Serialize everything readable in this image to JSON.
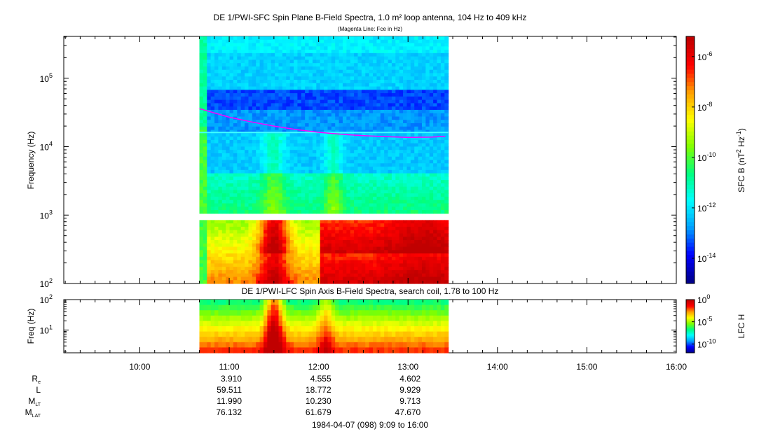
{
  "chart_data": [
    {
      "type": "heatmap",
      "title": "DE 1/PWI-SFC  Spin Plane B-Field Spectra, 1.0 m² loop antenna, 104 Hz to 409 kHz",
      "subtitle": "(Magenta Line: Fce in Hz)",
      "ylabel": "Frequency (Hz)",
      "yscale": "log",
      "ylim": [
        100,
        409000
      ],
      "yticks": [
        {
          "base": "10",
          "exp": "2"
        },
        {
          "base": "10",
          "exp": "3"
        },
        {
          "base": "10",
          "exp": "4"
        },
        {
          "base": "10",
          "exp": "5"
        }
      ],
      "xlim": [
        "09:09",
        "16:00"
      ],
      "data_time_range": [
        "10:40",
        "13:27"
      ],
      "colorbar": {
        "label_prefix": "SFC B (nT",
        "label_sup1": "2",
        "label_mid": " Hz",
        "label_sup2": "-1",
        "label_suffix": ")",
        "scale": "log",
        "ticks": [
          {
            "base": "10",
            "exp": "-6"
          },
          {
            "base": "10",
            "exp": "-8"
          },
          {
            "base": "10",
            "exp": "-10"
          },
          {
            "base": "10",
            "exp": "-12"
          },
          {
            "base": "10",
            "exp": "-14"
          }
        ],
        "colors": [
          "#00008b",
          "#0000ff",
          "#00a0ff",
          "#00ffff",
          "#00ff80",
          "#80ff00",
          "#ffff00",
          "#ffa000",
          "#ff0000",
          "#c00000"
        ]
      },
      "line_series": {
        "name": "Fce in Hz",
        "color": "#ff00ff",
        "x": [
          "10:40",
          "11:00",
          "11:15",
          "11:30",
          "11:45",
          "12:00",
          "12:15",
          "12:30",
          "12:45",
          "13:00",
          "13:15",
          "13:25"
        ],
        "y": [
          36000,
          27000,
          23000,
          20000,
          17800,
          16200,
          15200,
          14500,
          14000,
          13700,
          13800,
          14100
        ]
      }
    },
    {
      "type": "heatmap",
      "title": "DE 1/PWI-LFC  Spin Axis B-Field Spectra, search coil, 1.78 to 100 Hz",
      "ylabel": "Freq (Hz)",
      "yscale": "log",
      "ylim": [
        1.78,
        100
      ],
      "yticks": [
        {
          "base": "10",
          "exp": "1"
        },
        {
          "base": "10",
          "exp": "2"
        }
      ],
      "colorbar": {
        "label": "LFC H",
        "scale": "log",
        "ticks": [
          {
            "base": "10",
            "exp": "0"
          },
          {
            "base": "10",
            "exp": "-5"
          },
          {
            "base": "10",
            "exp": "-10"
          }
        ],
        "colors": [
          "#00008b",
          "#0000ff",
          "#00a0ff",
          "#00ffff",
          "#00ff80",
          "#80ff00",
          "#ffff00",
          "#ffa000",
          "#ff0000",
          "#c00000"
        ]
      }
    }
  ],
  "time_axis": {
    "ticks": [
      "10:00",
      "11:00",
      "12:00",
      "13:00",
      "14:00",
      "15:00",
      "16:00"
    ]
  },
  "ephemeris": {
    "rows": [
      {
        "label": "R",
        "sub": "e",
        "values": [
          "3.910",
          "4.555",
          "4.602"
        ]
      },
      {
        "label": "L",
        "sub": "",
        "values": [
          "59.511",
          "18.772",
          "9.929"
        ]
      },
      {
        "label": "M",
        "sub": "LT",
        "values": [
          "11.990",
          "10.230",
          "9.713"
        ]
      },
      {
        "label": "M",
        "sub": "LAT",
        "values": [
          "76.132",
          "61.679",
          "47.670"
        ]
      }
    ],
    "value_times": [
      "11:00",
      "12:00",
      "13:00"
    ]
  },
  "footer": "1984-04-07 (098) 9:09 to 16:00"
}
